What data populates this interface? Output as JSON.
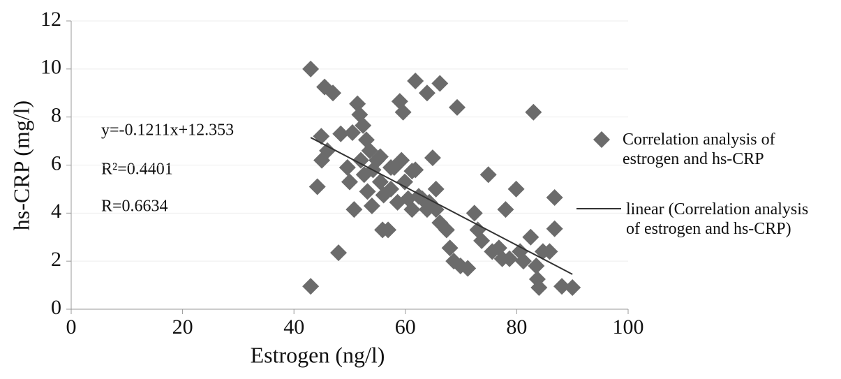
{
  "chart_data": {
    "type": "scatter",
    "x_label": "Estrogen (ng/l)",
    "y_label": "hs-CRP (mg/l)",
    "xlim": [
      0,
      100
    ],
    "xticks": [
      0,
      20,
      40,
      60,
      80,
      100
    ],
    "ylim": [
      0,
      12
    ],
    "yticks": [
      0,
      2,
      4,
      6,
      8,
      10,
      12
    ],
    "grid": true,
    "annotations": [
      "y=-0.1211x+12.353",
      "R²=0.4401",
      "R=0.6634"
    ],
    "series": [
      {
        "name": "Correlation analysis of estrogen and hs-CRP",
        "color": "#6b6b6b",
        "kind": "scatter",
        "x": [
          43,
          43,
          44.9,
          44.2,
          45.5,
          47,
          45,
          46,
          48.4,
          48,
          51.4,
          50.5,
          49.6,
          50,
          50.8,
          51.8,
          52.4,
          53,
          53.6,
          52,
          52.6,
          53.2,
          54,
          54.9,
          55.5,
          55.9,
          56.9,
          57.4,
          58,
          58.6,
          59,
          59.6,
          59.3,
          59.9,
          60.5,
          61.2,
          61.8,
          61.8,
          62.4,
          63,
          63.9,
          64.9,
          65.5,
          66.2,
          64.3,
          65.5,
          66.2,
          67.4,
          68,
          69.3,
          68.7,
          69.9,
          71.2,
          72.4,
          73,
          73.7,
          74.9,
          75.6,
          76.8,
          78,
          77.4,
          78.7,
          79.9,
          80.6,
          81.2,
          82.5,
          83,
          83.5,
          83.7,
          84,
          84.7,
          85.9,
          86.8,
          86.8,
          88.1,
          90,
          57.4,
          55.5,
          54.2,
          56.1,
          61.2,
          63.9
        ],
        "values": [
          10.0,
          0.95,
          7.2,
          5.1,
          9.25,
          9.0,
          6.2,
          6.6,
          7.3,
          2.35,
          8.55,
          7.35,
          5.9,
          5.3,
          4.15,
          8.1,
          7.65,
          7.05,
          6.6,
          6.2,
          5.6,
          4.9,
          4.3,
          6.2,
          5.3,
          3.3,
          3.3,
          5.0,
          5.9,
          4.45,
          8.65,
          8.2,
          6.2,
          5.3,
          4.6,
          5.75,
          9.5,
          5.8,
          4.7,
          4.6,
          9.0,
          6.3,
          5.0,
          9.4,
          4.45,
          4.15,
          3.6,
          3.3,
          2.55,
          8.4,
          2.0,
          1.8,
          1.7,
          4.0,
          3.3,
          2.85,
          5.6,
          2.4,
          2.55,
          4.15,
          2.1,
          2.1,
          5.0,
          2.4,
          2.0,
          3.0,
          8.2,
          1.8,
          1.25,
          0.9,
          2.4,
          2.4,
          4.65,
          3.35,
          0.95,
          0.9,
          5.9,
          6.35,
          5.8,
          4.75,
          4.15,
          4.15
        ]
      },
      {
        "name": "linear (Correlation analysis of estrogen and hs-CRP)",
        "color": "#333333",
        "kind": "line",
        "x": [
          43,
          90
        ],
        "values": [
          7.146,
          1.454
        ]
      }
    ]
  }
}
